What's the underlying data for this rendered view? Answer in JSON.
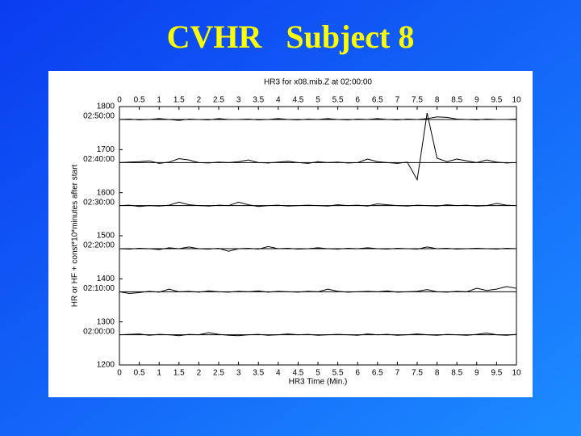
{
  "slide_title": "CVHR   Subject 8",
  "chart_data": {
    "type": "line",
    "title": "HR3 for x08.mib.Z at 02:00:00",
    "x_label": "HR3 Time (Min.)",
    "y_label": "HR or HF + const*10*minutes after start",
    "xlim": [
      0,
      10
    ],
    "xticks": [
      0,
      0.5,
      1,
      1.5,
      2,
      2.5,
      3,
      3.5,
      4,
      4.5,
      5,
      5.5,
      6,
      6.5,
      7,
      7.5,
      8,
      8.5,
      9,
      9.5,
      10
    ],
    "ylim": [
      1200,
      1800
    ],
    "yticks": [
      1200,
      1300,
      1400,
      1500,
      1600,
      1700,
      1800
    ],
    "reference_lines": [
      {
        "value": 1770,
        "label": "02:50:00"
      },
      {
        "value": 1670,
        "label": "02:40:00"
      },
      {
        "value": 1570,
        "label": "02:30:00"
      },
      {
        "value": 1470,
        "label": "02:20:00"
      },
      {
        "value": 1370,
        "label": "02:10:00"
      },
      {
        "value": 1270,
        "label": "02:00:00"
      }
    ],
    "x": [
      0,
      0.25,
      0.5,
      0.75,
      1,
      1.25,
      1.5,
      1.75,
      2,
      2.25,
      2.5,
      2.75,
      3,
      3.25,
      3.5,
      3.75,
      4,
      4.25,
      4.5,
      4.75,
      5,
      5.25,
      5.5,
      5.75,
      6,
      6.25,
      6.5,
      6.75,
      7,
      7.25,
      7.5,
      7.75,
      8,
      8.25,
      8.5,
      8.75,
      9,
      9.25,
      9.5,
      9.75,
      10
    ],
    "series": [
      {
        "color": "#000000",
        "values": [
          1770,
          1771,
          1769,
          1770,
          1772,
          1770,
          1768,
          1771,
          1770,
          1769,
          1772,
          1770,
          1770,
          1771,
          1769,
          1770,
          1772,
          1770,
          1769,
          1771,
          1770,
          1772,
          1770,
          1769,
          1771,
          1770,
          1772,
          1770,
          1769,
          1771,
          1770,
          1772,
          1776,
          1775,
          1771,
          1770,
          1769,
          1771,
          1770,
          1770,
          1771
        ]
      },
      {
        "color": "#000000",
        "values": [
          1670,
          1671,
          1672,
          1674,
          1668,
          1671,
          1679,
          1676,
          1670,
          1669,
          1671,
          1670,
          1672,
          1676,
          1670,
          1669,
          1671,
          1673,
          1670,
          1668,
          1672,
          1670,
          1671,
          1669,
          1670,
          1678,
          1672,
          1670,
          1668,
          1671,
          1630,
          1785,
          1680,
          1672,
          1678,
          1674,
          1670,
          1676,
          1671,
          1669,
          1670
        ]
      },
      {
        "color": "#000000",
        "values": [
          1570,
          1571,
          1568,
          1570,
          1569,
          1571,
          1578,
          1572,
          1570,
          1569,
          1571,
          1570,
          1578,
          1572,
          1568,
          1570,
          1571,
          1569,
          1570,
          1571,
          1570,
          1569,
          1572,
          1570,
          1571,
          1569,
          1574,
          1572,
          1570,
          1569,
          1571,
          1570,
          1569,
          1572,
          1570,
          1571,
          1569,
          1570,
          1575,
          1571,
          1570
        ]
      },
      {
        "color": "#000000",
        "values": [
          1470,
          1469,
          1471,
          1470,
          1468,
          1472,
          1470,
          1474,
          1470,
          1469,
          1471,
          1464,
          1470,
          1471,
          1469,
          1475,
          1470,
          1471,
          1469,
          1470,
          1472,
          1470,
          1469,
          1471,
          1470,
          1472,
          1470,
          1469,
          1471,
          1470,
          1469,
          1474,
          1470,
          1471,
          1469,
          1470,
          1471,
          1470,
          1469,
          1471,
          1470
        ]
      },
      {
        "color": "#000000",
        "values": [
          1370,
          1366,
          1368,
          1371,
          1369,
          1376,
          1370,
          1371,
          1369,
          1372,
          1370,
          1369,
          1371,
          1370,
          1372,
          1369,
          1371,
          1370,
          1369,
          1371,
          1370,
          1376,
          1371,
          1369,
          1370,
          1371,
          1370,
          1372,
          1369,
          1370,
          1371,
          1375,
          1370,
          1369,
          1371,
          1370,
          1378,
          1373,
          1376,
          1382,
          1378
        ]
      },
      {
        "color": "#000000",
        "values": [
          1270,
          1271,
          1272,
          1269,
          1271,
          1270,
          1268,
          1271,
          1270,
          1275,
          1271,
          1269,
          1268,
          1270,
          1271,
          1269,
          1270,
          1272,
          1270,
          1271,
          1269,
          1270,
          1271,
          1270,
          1269,
          1272,
          1270,
          1271,
          1269,
          1270,
          1272,
          1270,
          1269,
          1271,
          1270,
          1269,
          1271,
          1274,
          1270,
          1269,
          1271
        ]
      }
    ]
  }
}
